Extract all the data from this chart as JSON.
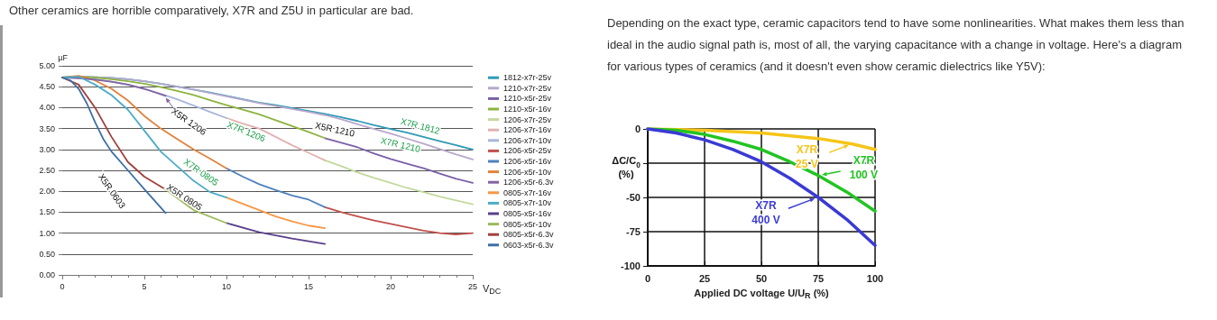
{
  "chart_data": [
    {
      "type": "line",
      "title": "Other ceramics are horrible comparatively, X7R and Z5U in particular are bad.",
      "xlabel": "V$_{DC}$",
      "ylabel": "µF",
      "xlim": [
        0,
        25
      ],
      "xticks": [
        0,
        5,
        10,
        15,
        20,
        25
      ],
      "ylim": [
        0,
        5
      ],
      "yticks": [
        {
          "value": 0,
          "label": "0.00"
        },
        {
          "value": 0.5,
          "label": "0.50"
        },
        {
          "value": 1,
          "label": "1.00"
        },
        {
          "value": 1.5,
          "label": "1.50"
        },
        {
          "value": 2,
          "label": "2.00"
        },
        {
          "value": 2.5,
          "label": "2.50"
        },
        {
          "value": 3,
          "label": "3.00"
        },
        {
          "value": 3.5,
          "label": "3.50"
        },
        {
          "value": 4,
          "label": "4.00"
        },
        {
          "value": 4.5,
          "label": "4.50"
        },
        {
          "value": 5,
          "label": "5.00"
        }
      ],
      "grid": "y",
      "legend": "right",
      "marker": "none",
      "line_style": "solid",
      "annotations": [
        "X5R 1206",
        "X7R 1206",
        "X5R 1210",
        "X7R 1812",
        "X7R 1210",
        "X7R 0805",
        "X5R 0805",
        "X5R 0603"
      ],
      "series": [
        {
          "name": "1812-x7r-25v",
          "color": "#2e9bb5",
          "x": [
            0,
            1,
            2,
            3,
            4,
            5,
            6,
            7,
            8,
            9,
            10,
            11,
            12,
            13,
            14,
            15,
            16,
            17,
            18,
            19,
            20,
            21,
            22,
            23,
            24,
            25
          ],
          "values": [
            4.72,
            4.74,
            4.73,
            4.71,
            4.68,
            4.63,
            4.57,
            4.5,
            4.43,
            4.36,
            4.28,
            4.2,
            4.12,
            4.06,
            3.99,
            3.92,
            3.85,
            3.77,
            3.68,
            3.58,
            3.49,
            3.4,
            3.3,
            3.2,
            3.1,
            3.0
          ]
        },
        {
          "name": "1210-x7r-25v",
          "color": "#b8a8cc",
          "x": [
            0,
            1,
            2,
            3,
            4,
            5,
            6,
            7,
            8,
            9,
            10,
            11,
            12,
            13,
            14,
            15,
            16,
            17,
            18,
            19,
            20,
            21,
            22,
            23,
            24,
            25
          ],
          "values": [
            4.72,
            4.74,
            4.73,
            4.71,
            4.68,
            4.63,
            4.57,
            4.5,
            4.43,
            4.35,
            4.27,
            4.19,
            4.11,
            4.04,
            3.97,
            3.9,
            3.82,
            3.72,
            3.6,
            3.49,
            3.38,
            3.26,
            3.14,
            3.01,
            2.88,
            2.76
          ]
        },
        {
          "name": "1210-x5r-25v",
          "color": "#7a5fa8",
          "x": [
            16,
            17,
            18,
            19,
            20,
            21,
            22,
            23,
            24,
            25
          ],
          "values": [
            3.27,
            3.16,
            3.05,
            2.9,
            2.77,
            2.66,
            2.55,
            2.42,
            2.3,
            2.2
          ]
        },
        {
          "name": "1210-x5r-16v",
          "color": "#8db340",
          "x": [
            0,
            1,
            2,
            3,
            4,
            5,
            6,
            7,
            8,
            9,
            10,
            11,
            12,
            13,
            14,
            15,
            16
          ],
          "values": [
            4.72,
            4.74,
            4.72,
            4.68,
            4.63,
            4.57,
            4.49,
            4.4,
            4.3,
            4.18,
            4.06,
            3.95,
            3.84,
            3.7,
            3.56,
            3.42,
            3.27
          ]
        },
        {
          "name": "1206-x7r-25v",
          "color": "#c3d99c",
          "x": [
            16,
            17,
            18,
            19,
            20,
            21,
            22,
            23,
            24,
            25
          ],
          "values": [
            2.74,
            2.6,
            2.45,
            2.32,
            2.2,
            2.08,
            1.98,
            1.87,
            1.78,
            1.69
          ]
        },
        {
          "name": "1206-x7r-16v",
          "color": "#e2b2b0",
          "x": [
            10,
            11,
            12,
            13,
            14,
            15,
            16
          ],
          "values": [
            3.75,
            3.62,
            3.5,
            3.3,
            3.1,
            2.92,
            2.74
          ]
        },
        {
          "name": "1206-x7r-10v",
          "color": "#a8b6da",
          "x": [
            0,
            1,
            2,
            3,
            4,
            5,
            6,
            7,
            8,
            9,
            10
          ],
          "values": [
            4.72,
            4.72,
            4.68,
            4.62,
            4.55,
            4.45,
            4.33,
            4.2,
            4.05,
            3.9,
            3.75
          ]
        },
        {
          "name": "1206-x5r-25v",
          "color": "#c0504d",
          "x": [
            16,
            17,
            18,
            19,
            20,
            21,
            22,
            23,
            24,
            25
          ],
          "values": [
            1.62,
            1.5,
            1.4,
            1.3,
            1.22,
            1.14,
            1.06,
            1.0,
            0.97,
            1.0
          ]
        },
        {
          "name": "1206-x5r-16v",
          "color": "#4f81bd",
          "x": [
            10,
            11,
            12,
            13,
            14,
            15,
            16
          ],
          "values": [
            2.55,
            2.35,
            2.17,
            2.03,
            1.9,
            1.8,
            1.62
          ]
        },
        {
          "name": "1206-x5r-10v",
          "color": "#e0823c",
          "x": [
            0,
            1,
            2,
            3,
            4,
            5,
            6,
            7,
            8,
            9,
            10
          ],
          "values": [
            4.72,
            4.76,
            4.65,
            4.45,
            4.17,
            3.8,
            3.5,
            3.25,
            3.0,
            2.78,
            2.55
          ]
        },
        {
          "name": "1206-x5r-6.3v",
          "color": "#8064a2",
          "x": [
            0,
            1,
            2,
            3,
            4,
            5,
            6.3
          ],
          "values": [
            4.72,
            4.7,
            4.67,
            4.62,
            4.55,
            4.45,
            4.28
          ]
        },
        {
          "name": "0805-x7r-16v",
          "color": "#f79646",
          "x": [
            10,
            11,
            12,
            13,
            14,
            15,
            16
          ],
          "values": [
            1.85,
            1.7,
            1.55,
            1.4,
            1.28,
            1.18,
            1.12
          ]
        },
        {
          "name": "0805-x7r-10v",
          "color": "#4bacc6",
          "x": [
            0,
            1,
            2,
            3,
            4,
            5,
            6,
            7,
            8,
            9,
            10
          ],
          "values": [
            4.72,
            4.74,
            4.55,
            4.3,
            3.95,
            3.45,
            2.95,
            2.6,
            2.25,
            1.98,
            1.85
          ]
        },
        {
          "name": "0805-x5r-16v",
          "color": "#5a3f8a",
          "x": [
            10,
            12,
            14,
            16
          ],
          "values": [
            1.24,
            1.02,
            0.87,
            0.74
          ]
        },
        {
          "name": "0805-x5r-10v",
          "color": "#9bbb59",
          "x": [
            6.3,
            8,
            10
          ],
          "values": [
            2.04,
            1.55,
            1.24
          ]
        },
        {
          "name": "0805-x5r-6.3v",
          "color": "#a0403c",
          "x": [
            0,
            1,
            2,
            3,
            4,
            5,
            6.3
          ],
          "values": [
            4.72,
            4.55,
            4.0,
            3.3,
            2.7,
            2.35,
            2.04
          ]
        },
        {
          "name": "0603-x5r-6.3v",
          "color": "#3d6fa5",
          "x": [
            0,
            0.5,
            1,
            1.5,
            2,
            2.5,
            3,
            4,
            5,
            6.3
          ],
          "values": [
            4.72,
            4.65,
            4.45,
            4.1,
            3.65,
            3.25,
            2.95,
            2.5,
            2.05,
            1.48
          ]
        }
      ]
    },
    {
      "type": "line",
      "annotations": [
        "Depending on the exact type, ceramic capacitors tend to have some nonlinearities. What makes them less than ideal in the audio signal path is, most of all, the varying capacitance with a change in voltage. Here's a diagram for various types of ceramics (and it doesn't even show ceramic dielectrics like Y5V):"
      ],
      "xlabel": "Applied DC voltage U/U$_{R}$ (%)",
      "ylabel": "ΔC/C$_{0}$ (%)",
      "xlim": [
        0,
        100
      ],
      "xticks": [
        0,
        25,
        50,
        75,
        100
      ],
      "ylim": [
        -100,
        0
      ],
      "yticks": [
        0,
        {
          "value": -25,
          "label": null
        },
        -50,
        -75,
        -100
      ],
      "grid": true,
      "legend": "center",
      "marker": "none",
      "line_style": "solid",
      "series": [
        {
          "name": "X7R 25 V",
          "color": "#f5c518",
          "x": [
            0,
            25,
            50,
            75,
            90,
            100
          ],
          "values": [
            0,
            -1,
            -3,
            -7,
            -11,
            -15
          ]
        },
        {
          "name": "X7R 100 V",
          "color": "#22c422",
          "x": [
            0,
            12.5,
            25,
            37.5,
            50,
            62.5,
            75,
            87.5,
            100
          ],
          "values": [
            0,
            -1,
            -4,
            -9,
            -15,
            -24,
            -34,
            -46,
            -60
          ]
        },
        {
          "name": "X7R 400 V",
          "color": "#3a3ad6",
          "x": [
            0,
            12.5,
            25,
            37.5,
            50,
            62.5,
            75,
            87.5,
            100
          ],
          "values": [
            0,
            -3,
            -8,
            -15,
            -24,
            -36,
            -50,
            -66,
            -85
          ]
        }
      ]
    }
  ]
}
